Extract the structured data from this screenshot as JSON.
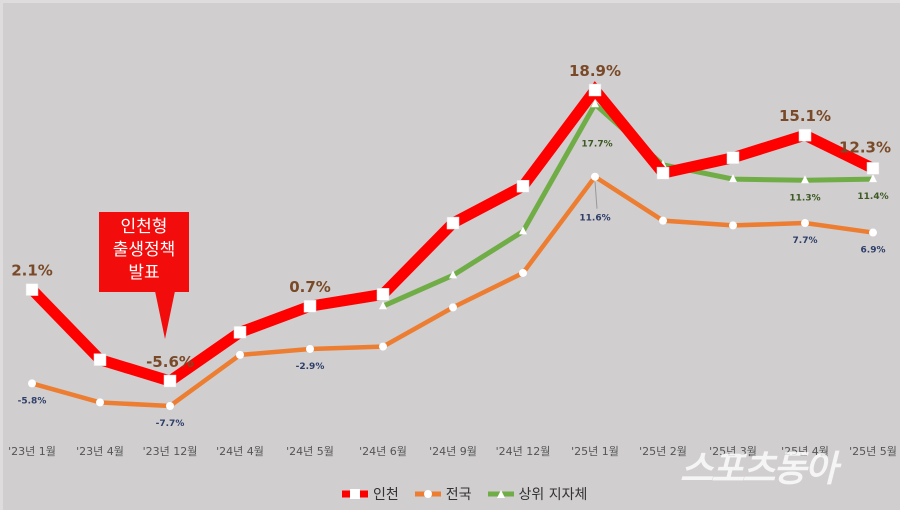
{
  "chart_data": {
    "type": "line",
    "title": "",
    "xlabel": "",
    "ylabel": "",
    "categories": [
      "'23년 1월",
      "'23년 4월",
      "'23년 12월",
      "'24년 4월",
      "'24년 5월",
      "'24년 6월",
      "'24년 9월",
      "'24년 12월",
      "'25년 1월",
      "'25년 2월",
      "'25년 3월",
      "'25년 4월",
      "'25년 5월"
    ],
    "series": [
      {
        "name": "인천",
        "color": "#ff0000",
        "marker": "square",
        "values": [
          2.1,
          -3.8,
          -5.6,
          -1.5,
          0.7,
          1.7,
          7.7,
          10.8,
          18.9,
          11.9,
          13.2,
          15.1,
          12.3
        ],
        "labeled": {
          "0": "2.1%",
          "2": "-5.6%",
          "4": "0.7%",
          "8": "18.9%",
          "11": "15.1%",
          "12": "12.3%"
        }
      },
      {
        "name": "전국",
        "color": "#ed7d31",
        "marker": "circle",
        "values": [
          -5.8,
          -7.4,
          -7.7,
          -3.4,
          -2.9,
          -2.7,
          0.6,
          3.5,
          11.6,
          7.9,
          7.5,
          7.7,
          6.9
        ],
        "labeled": {
          "0": "-5.8%",
          "2": "-7.7%",
          "4": "-2.9%",
          "8": "11.6%",
          "11": "7.7%",
          "12": "6.9%"
        }
      },
      {
        "name": "상위 지자체",
        "color": "#70ad47",
        "marker": "triangle",
        "values": [
          null,
          null,
          null,
          null,
          null,
          0.7,
          3.3,
          7.0,
          17.7,
          12.6,
          11.4,
          11.3,
          11.4
        ],
        "labeled": {
          "8": "17.7%",
          "11": "11.3%",
          "12": "11.4%"
        }
      }
    ],
    "annotations": [
      {
        "text": "인천형\n출생정책\n발표",
        "at": "'23년 12월"
      }
    ],
    "legend_position": "bottom",
    "grid": false
  },
  "callout": {
    "line1": "인천형",
    "line2": "출생정책",
    "line3": "발표"
  },
  "legend": [
    {
      "label": "인천"
    },
    {
      "label": "전국"
    },
    {
      "label": "상위 지자체"
    }
  ],
  "watermark": "스포츠동아"
}
